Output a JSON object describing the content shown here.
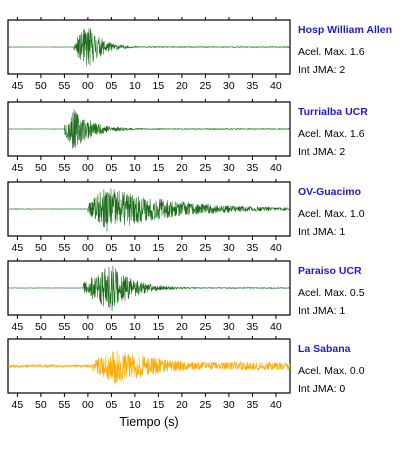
{
  "chart_data": {
    "type": "line",
    "xlabel": "Tiempo (s)",
    "x_tick_labels": [
      "45",
      "50",
      "55",
      "00",
      "05",
      "10",
      "15",
      "20",
      "25",
      "30",
      "35",
      "40"
    ],
    "x_range_seconds": [
      -17,
      43
    ],
    "y_range": [
      -1,
      1
    ],
    "grid": false,
    "panels": [
      {
        "station": "Hosp William Allen",
        "accel_label": "Acel. Max. 1.6",
        "jma_label": "Int JMA: 2",
        "color": "#1a6e1a",
        "series": {
          "onset": -3,
          "peak_time": 0,
          "peak": 0.92,
          "rise": 1.8,
          "decay": 3.0,
          "floor": 0.02,
          "end": 43,
          "seed": 11
        }
      },
      {
        "station": "Turrialba UCR",
        "accel_label": "Acel. Max. 1.6",
        "jma_label": "Int JMA: 2",
        "color": "#1a6e1a",
        "series": {
          "onset": -5,
          "peak_time": -3.2,
          "peak": 0.85,
          "rise": 1.6,
          "decay": 4.2,
          "floor": 0.02,
          "end": 43,
          "seed": 23
        }
      },
      {
        "station": "OV-Guacimo",
        "accel_label": "Acel. Max. 1.0",
        "jma_label": "Int JMA: 1",
        "color": "#1a6e1a",
        "series": {
          "onset": 0,
          "peak_time": 4,
          "peak": 0.92,
          "rise": 3.0,
          "decay": 14,
          "floor": 0.03,
          "end": 43,
          "seed": 37
        }
      },
      {
        "station": "Paraiso UCR",
        "accel_label": "Acel. Max. 0.5",
        "jma_label": "Int JMA: 1",
        "color": "#1a6e1a",
        "series": {
          "onset": -1,
          "peak_time": 5,
          "peak": 0.95,
          "rise": 3.2,
          "decay": 4.8,
          "floor": 0.02,
          "end": 43,
          "seed": 51
        }
      },
      {
        "station": "La Sabana",
        "accel_label": "Acel. Max. 0.0",
        "jma_label": "Int JMA: 0",
        "color": "#ffaa00",
        "series": {
          "onset": 1,
          "peak_time": 6,
          "peak": 0.75,
          "rise": 2.5,
          "decay": 10,
          "floor": 0.16,
          "end": 43,
          "seed": 67
        }
      }
    ]
  }
}
